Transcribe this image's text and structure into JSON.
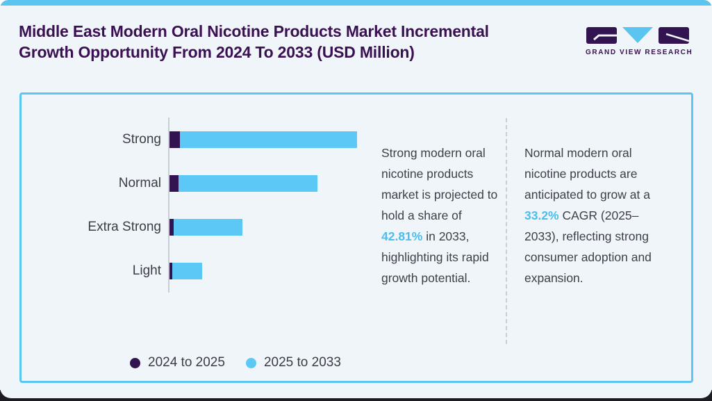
{
  "header": {
    "title_line1": "Middle East Modern Oral Nicotine Products Market Incremental",
    "title_line2": "Growth Opportunity From 2024 To 2033 (USD Million)",
    "logo_text": "GRAND VIEW RESEARCH"
  },
  "chart_data": {
    "type": "bar",
    "orientation": "horizontal",
    "stacked": true,
    "title": "Middle East Modern Oral Nicotine Products Market Incremental Growth Opportunity From 2024 To 2033 (USD Million)",
    "categories": [
      "Strong",
      "Normal",
      "Extra Strong",
      "Light"
    ],
    "series": [
      {
        "name": "2024 to 2025",
        "color": "#321450",
        "values": [
          15,
          13,
          6,
          4
        ]
      },
      {
        "name": "2025 to 2033",
        "color": "#5BC8F5",
        "values": [
          255,
          200,
          99,
          43
        ]
      }
    ],
    "unit": "relative bar length in px (value axis not labeled in source, USD Million)",
    "legend_position": "bottom",
    "grid": false,
    "axis_line_color": "#C9CED4"
  },
  "notes": [
    {
      "before": "Strong modern oral nicotine products market is projected to hold a share of ",
      "highlight": "42.81%",
      "after": " in 2033, highlighting its rapid growth potential."
    },
    {
      "before": "Normal modern oral nicotine products are anticipated to grow at a ",
      "highlight": "33.2%",
      "after": " CAGR (2025–2033), reflecting strong consumer adoption and expansion."
    }
  ],
  "colors": {
    "accent_blue": "#5BC4EF",
    "bar_blue": "#5BC8F5",
    "brand_purple": "#3A1053",
    "bar_purple": "#321450",
    "highlight_text": "#4CBDEC",
    "card_background": "#EFF5F9",
    "panel_border": "#5BC6F2"
  }
}
